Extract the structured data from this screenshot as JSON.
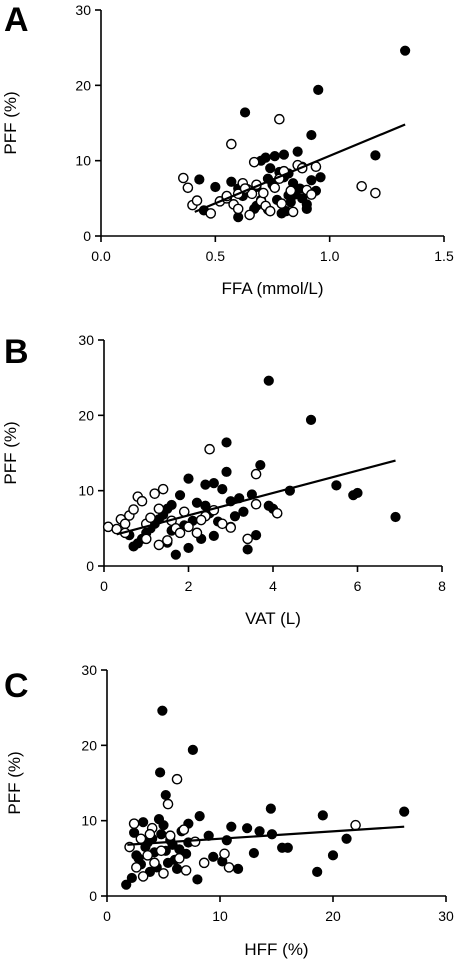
{
  "chart_data": [
    {
      "type": "scatter",
      "panel_label": "A",
      "xlabel": "FFA (mmol/L)",
      "ylabel": "PFF (%)",
      "xlim": [
        0,
        1.5
      ],
      "ylim": [
        0,
        30
      ],
      "xticks": [
        0,
        0.5,
        1.0,
        1.5
      ],
      "xtick_labels": [
        "0.0",
        "0.5",
        "1.0",
        "1.5"
      ],
      "yticks": [
        0,
        10,
        20,
        30
      ],
      "ytick_labels": [
        "0",
        "10",
        "20",
        "30"
      ],
      "fit_line": [
        [
          0.41,
          3.2
        ],
        [
          1.33,
          14.8
        ]
      ],
      "series": [
        {
          "marker": "filled",
          "points": [
            [
              1.33,
              24.6
            ],
            [
              0.95,
              19.4
            ],
            [
              0.63,
              16.4
            ],
            [
              0.92,
              13.4
            ],
            [
              1.2,
              10.7
            ],
            [
              0.43,
              7.5
            ],
            [
              0.5,
              6.5
            ],
            [
              0.57,
              7.2
            ],
            [
              0.6,
              6.3
            ],
            [
              0.65,
              5.8
            ],
            [
              0.68,
              6.5
            ],
            [
              0.7,
              10.0
            ],
            [
              0.72,
              10.4
            ],
            [
              0.74,
              9.0
            ],
            [
              0.76,
              10.6
            ],
            [
              0.78,
              8.5
            ],
            [
              0.8,
              7.8
            ],
            [
              0.82,
              5.4
            ],
            [
              0.84,
              7.0
            ],
            [
              0.86,
              11.2
            ],
            [
              0.88,
              5.0
            ],
            [
              0.9,
              4.2
            ],
            [
              0.92,
              7.4
            ],
            [
              0.94,
              6.0
            ],
            [
              0.96,
              7.8
            ],
            [
              0.45,
              3.4
            ],
            [
              0.6,
              2.5
            ],
            [
              0.68,
              4.0
            ],
            [
              0.73,
              3.5
            ],
            [
              0.77,
              4.8
            ],
            [
              0.79,
              3.0
            ],
            [
              0.81,
              3.3
            ],
            [
              0.83,
              4.5
            ],
            [
              0.85,
              5.5
            ],
            [
              0.87,
              6.3
            ],
            [
              0.9,
              3.6
            ],
            [
              0.75,
              6.8
            ],
            [
              0.7,
              4.8
            ],
            [
              0.62,
              5.3
            ],
            [
              0.67,
              3.6
            ],
            [
              0.8,
              10.8
            ],
            [
              0.73,
              7.6
            ],
            [
              0.88,
              9.2
            ],
            [
              0.82,
              8.3
            ]
          ]
        },
        {
          "marker": "open",
          "points": [
            [
              0.57,
              12.2
            ],
            [
              0.78,
              15.5
            ],
            [
              0.36,
              7.7
            ],
            [
              0.38,
              6.4
            ],
            [
              0.4,
              4.1
            ],
            [
              0.42,
              4.7
            ],
            [
              0.48,
              3.0
            ],
            [
              0.52,
              4.6
            ],
            [
              0.55,
              5.0
            ],
            [
              0.58,
              4.2
            ],
            [
              0.6,
              5.6
            ],
            [
              0.62,
              7.0
            ],
            [
              0.64,
              6.2
            ],
            [
              0.66,
              5.6
            ],
            [
              0.68,
              6.8
            ],
            [
              0.7,
              4.6
            ],
            [
              0.72,
              4.0
            ],
            [
              0.74,
              3.3
            ],
            [
              0.76,
              6.4
            ],
            [
              0.78,
              7.6
            ],
            [
              0.8,
              8.6
            ],
            [
              0.83,
              6.0
            ],
            [
              0.86,
              9.4
            ],
            [
              0.88,
              9.0
            ],
            [
              0.9,
              6.1
            ],
            [
              0.92,
              5.5
            ],
            [
              0.94,
              9.2
            ],
            [
              1.14,
              6.6
            ],
            [
              1.2,
              5.7
            ],
            [
              0.65,
              2.8
            ],
            [
              0.6,
              3.6
            ],
            [
              0.55,
              5.3
            ],
            [
              0.84,
              3.2
            ],
            [
              0.79,
              4.3
            ],
            [
              0.71,
              5.7
            ],
            [
              0.67,
              9.8
            ],
            [
              0.63,
              6.3
            ]
          ]
        }
      ]
    },
    {
      "type": "scatter",
      "panel_label": "B",
      "xlabel": "VAT (L)",
      "ylabel": "PFF (%)",
      "xlim": [
        0,
        8
      ],
      "ylim": [
        0,
        30
      ],
      "xticks": [
        0,
        2,
        4,
        6,
        8
      ],
      "xtick_labels": [
        "0",
        "2",
        "4",
        "6",
        "8"
      ],
      "yticks": [
        0,
        10,
        20,
        30
      ],
      "ytick_labels": [
        "0",
        "10",
        "20",
        "30"
      ],
      "fit_line": [
        [
          0.3,
          4.2
        ],
        [
          6.9,
          14.0
        ]
      ],
      "series": [
        {
          "marker": "filled",
          "points": [
            [
              3.9,
              24.6
            ],
            [
              4.9,
              19.4
            ],
            [
              2.9,
              16.4
            ],
            [
              3.7,
              13.4
            ],
            [
              5.5,
              10.7
            ],
            [
              5.9,
              9.4
            ],
            [
              6.0,
              9.7
            ],
            [
              6.9,
              6.5
            ],
            [
              4.4,
              10.0
            ],
            [
              3.9,
              8.0
            ],
            [
              4.0,
              7.6
            ],
            [
              3.5,
              9.5
            ],
            [
              3.2,
              9.0
            ],
            [
              3.0,
              8.6
            ],
            [
              2.8,
              10.2
            ],
            [
              2.6,
              11.0
            ],
            [
              2.4,
              10.8
            ],
            [
              2.2,
              8.4
            ],
            [
              2.0,
              11.6
            ],
            [
              1.8,
              9.4
            ],
            [
              1.6,
              8.1
            ],
            [
              1.5,
              7.6
            ],
            [
              1.4,
              6.8
            ],
            [
              1.3,
              6.2
            ],
            [
              1.2,
              5.6
            ],
            [
              1.1,
              5.0
            ],
            [
              1.0,
              4.4
            ],
            [
              0.9,
              3.6
            ],
            [
              0.8,
              3.0
            ],
            [
              0.7,
              2.6
            ],
            [
              1.7,
              1.5
            ],
            [
              2.0,
              2.4
            ],
            [
              2.3,
              3.6
            ],
            [
              2.6,
              4.0
            ],
            [
              3.0,
              5.2
            ],
            [
              3.4,
              2.2
            ],
            [
              3.6,
              4.1
            ],
            [
              1.9,
              5.4
            ],
            [
              2.5,
              7.0
            ],
            [
              2.7,
              5.9
            ],
            [
              3.3,
              7.2
            ],
            [
              1.6,
              4.7
            ],
            [
              2.9,
              12.5
            ],
            [
              2.1,
              6.0
            ],
            [
              1.5,
              3.1
            ],
            [
              0.6,
              4.1
            ],
            [
              2.4,
              8.0
            ],
            [
              3.1,
              6.6
            ]
          ]
        },
        {
          "marker": "open",
          "points": [
            [
              2.5,
              15.5
            ],
            [
              3.6,
              12.2
            ],
            [
              0.1,
              5.2
            ],
            [
              0.3,
              4.9
            ],
            [
              0.4,
              6.2
            ],
            [
              0.5,
              5.6
            ],
            [
              0.6,
              6.7
            ],
            [
              0.7,
              7.5
            ],
            [
              0.8,
              9.2
            ],
            [
              0.9,
              8.6
            ],
            [
              1.0,
              5.6
            ],
            [
              1.1,
              6.4
            ],
            [
              1.2,
              9.6
            ],
            [
              1.3,
              7.6
            ],
            [
              1.4,
              10.2
            ],
            [
              1.5,
              3.4
            ],
            [
              1.6,
              6.0
            ],
            [
              1.7,
              5.0
            ],
            [
              1.8,
              4.4
            ],
            [
              2.0,
              5.2
            ],
            [
              2.2,
              4.4
            ],
            [
              2.4,
              6.6
            ],
            [
              2.6,
              7.4
            ],
            [
              2.8,
              5.6
            ],
            [
              3.0,
              5.1
            ],
            [
              3.4,
              3.6
            ],
            [
              3.6,
              8.2
            ],
            [
              4.1,
              7.0
            ],
            [
              1.3,
              2.8
            ],
            [
              1.0,
              3.6
            ],
            [
              0.5,
              4.4
            ],
            [
              1.9,
              7.2
            ],
            [
              2.3,
              6.1
            ]
          ]
        }
      ]
    },
    {
      "type": "scatter",
      "panel_label": "C",
      "xlabel": "HFF (%)",
      "ylabel": "PFF (%)",
      "xlim": [
        0,
        30
      ],
      "ylim": [
        0,
        30
      ],
      "xticks": [
        0,
        10,
        20,
        30
      ],
      "xtick_labels": [
        "0",
        "10",
        "20",
        "30"
      ],
      "yticks": [
        0,
        10,
        20,
        30
      ],
      "ytick_labels": [
        "0",
        "10",
        "20",
        "30"
      ],
      "fit_line": [
        [
          1.8,
          6.8
        ],
        [
          26.3,
          9.2
        ]
      ],
      "series": [
        {
          "marker": "filled",
          "points": [
            [
              4.9,
              24.6
            ],
            [
              7.6,
              19.4
            ],
            [
              4.7,
              16.4
            ],
            [
              5.2,
              13.4
            ],
            [
              26.3,
              11.2
            ],
            [
              14.5,
              11.6
            ],
            [
              19.1,
              10.7
            ],
            [
              21.2,
              7.6
            ],
            [
              20.0,
              5.4
            ],
            [
              18.6,
              3.2
            ],
            [
              16.0,
              6.4
            ],
            [
              15.5,
              6.4
            ],
            [
              14.6,
              8.2
            ],
            [
              13.5,
              8.6
            ],
            [
              12.4,
              9.0
            ],
            [
              11.0,
              9.2
            ],
            [
              10.6,
              7.4
            ],
            [
              10.2,
              4.6
            ],
            [
              9.4,
              5.2
            ],
            [
              8.0,
              2.2
            ],
            [
              7.2,
              7.1
            ],
            [
              7.0,
              5.6
            ],
            [
              6.6,
              8.6
            ],
            [
              6.2,
              3.6
            ],
            [
              5.8,
              6.8
            ],
            [
              5.4,
              4.4
            ],
            [
              5.0,
              9.4
            ],
            [
              4.6,
              10.2
            ],
            [
              4.2,
              5.8
            ],
            [
              3.8,
              3.2
            ],
            [
              3.4,
              6.5
            ],
            [
              3.0,
              4.2
            ],
            [
              2.6,
              5.4
            ],
            [
              2.2,
              2.4
            ],
            [
              1.7,
              1.5
            ],
            [
              2.4,
              8.4
            ],
            [
              3.2,
              9.8
            ],
            [
              4.0,
              7.6
            ],
            [
              4.8,
              8.2
            ],
            [
              5.6,
              7.4
            ],
            [
              6.4,
              6.2
            ],
            [
              7.2,
              9.6
            ],
            [
              8.2,
              10.6
            ],
            [
              11.6,
              3.6
            ],
            [
              13.0,
              5.7
            ],
            [
              9.0,
              8.0
            ],
            [
              6.0,
              4.8
            ],
            [
              3.6,
              7.1
            ],
            [
              4.4,
              3.8
            ],
            [
              5.2,
              6.0
            ],
            [
              2.8,
              5.0
            ]
          ]
        },
        {
          "marker": "open",
          "points": [
            [
              6.2,
              15.5
            ],
            [
              5.4,
              12.2
            ],
            [
              2.0,
              6.5
            ],
            [
              2.4,
              9.6
            ],
            [
              3.0,
              7.6
            ],
            [
              3.6,
              5.4
            ],
            [
              4.2,
              4.4
            ],
            [
              4.8,
              6.0
            ],
            [
              5.6,
              8.0
            ],
            [
              6.4,
              5.0
            ],
            [
              7.0,
              3.4
            ],
            [
              7.8,
              7.2
            ],
            [
              8.6,
              4.4
            ],
            [
              10.8,
              3.8
            ],
            [
              10.4,
              5.6
            ],
            [
              22.0,
              9.4
            ],
            [
              3.2,
              2.6
            ],
            [
              4.0,
              9.0
            ],
            [
              5.0,
              3.0
            ],
            [
              6.8,
              8.8
            ],
            [
              2.6,
              3.8
            ],
            [
              3.8,
              8.2
            ]
          ]
        }
      ]
    }
  ]
}
